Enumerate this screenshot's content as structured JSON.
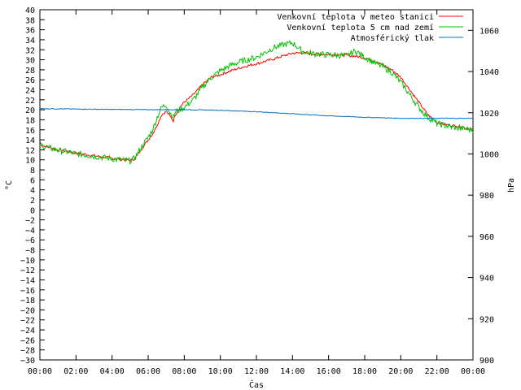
{
  "chart_data": {
    "type": "line",
    "title": "",
    "xlabel": "Čas",
    "ylabel": "°C",
    "y2label": "hPa",
    "x_ticks": [
      "00:00",
      "02:00",
      "04:00",
      "06:00",
      "08:00",
      "10:00",
      "12:00",
      "14:00",
      "16:00",
      "18:00",
      "20:00",
      "22:00",
      "00:00"
    ],
    "x_range_hours": [
      0,
      24
    ],
    "ylim": [
      -30,
      40
    ],
    "y_ticks": [
      "40",
      "38",
      "36",
      "34",
      "32",
      "30",
      "28",
      "26",
      "24",
      "22",
      "20",
      "18",
      "16",
      "14",
      "12",
      "10",
      "8",
      "6",
      "4",
      "2",
      "0",
      "−2",
      "−4",
      "−6",
      "−8",
      "−10",
      "−12",
      "−14",
      "−16",
      "−18",
      "−20",
      "−22",
      "−24",
      "−26",
      "−28",
      "−30"
    ],
    "y2lim": [
      900,
      1070
    ],
    "y2_ticks": [
      "1060",
      "1040",
      "1020",
      "1000",
      "980",
      "960",
      "940",
      "920",
      "900"
    ],
    "legend_position": "top-right",
    "grid": false,
    "series": [
      {
        "name": "Venkovní teplota v meteo stanici",
        "color": "#ff0000",
        "axis": "left",
        "x_hours": [
          0,
          0.5,
          1,
          1.5,
          2,
          2.5,
          3,
          3.5,
          4,
          4.5,
          5,
          5.25,
          5.5,
          5.75,
          6,
          6.25,
          6.5,
          6.75,
          7,
          7.2,
          7.4,
          7.5,
          7.75,
          8,
          8.5,
          9,
          9.5,
          10,
          10.5,
          11,
          11.5,
          12,
          12.5,
          13,
          13.5,
          14,
          14.5,
          15,
          15.5,
          16,
          16.5,
          17,
          17.5,
          18,
          18.5,
          19,
          19.5,
          20,
          20.5,
          21,
          21.5,
          22,
          22.5,
          23,
          23.5,
          24
        ],
        "values": [
          13,
          12.5,
          12,
          11.7,
          11.3,
          11.1,
          10.8,
          10.6,
          10.3,
          10.1,
          9.9,
          10.2,
          11.5,
          12.8,
          14,
          15.2,
          17,
          19,
          19.7,
          18.8,
          17.8,
          19,
          20.5,
          21.5,
          23,
          25,
          26.5,
          27,
          27.7,
          28.3,
          28.8,
          29.2,
          29.7,
          30.2,
          30.8,
          31.3,
          31.4,
          31.2,
          31.1,
          31.1,
          31,
          30.9,
          30.7,
          30.4,
          29.8,
          29,
          28,
          26.5,
          24,
          21.5,
          19,
          17.5,
          17,
          16.8,
          16.5,
          16
        ],
        "jitter": 0.25
      },
      {
        "name": "Venkovní teplota 5 cm nad zemí",
        "color": "#00c000",
        "axis": "left",
        "x_hours": [
          0,
          0.5,
          1,
          1.5,
          2,
          2.5,
          3,
          3.5,
          4,
          4.5,
          5,
          5.25,
          5.5,
          5.75,
          6,
          6.25,
          6.5,
          6.75,
          7,
          7.2,
          7.4,
          7.5,
          7.75,
          8,
          8.5,
          9,
          9.5,
          10,
          10.5,
          11,
          11.5,
          12,
          12.5,
          13,
          13.5,
          14,
          14.5,
          15,
          15.5,
          16,
          16.5,
          17,
          17.5,
          18,
          18.5,
          19,
          19.5,
          20,
          20.5,
          21,
          21.5,
          22,
          22.5,
          23,
          23.5,
          24
        ],
        "values": [
          13,
          12.4,
          11.9,
          11.6,
          11.2,
          11,
          10.7,
          10.5,
          10.2,
          10,
          9.8,
          10.3,
          11.8,
          13.2,
          14.5,
          16,
          18.5,
          20.5,
          21,
          19.5,
          18.5,
          19.5,
          20,
          20.5,
          22,
          24.5,
          26.5,
          27.8,
          28.8,
          29.5,
          30,
          30.5,
          31.5,
          32.5,
          33,
          33.4,
          31.8,
          31.3,
          31.1,
          31,
          30.9,
          30.8,
          31.8,
          30.5,
          29.5,
          28.6,
          27.5,
          25.5,
          23,
          20.5,
          18.5,
          17.3,
          16.8,
          16.4,
          16.2,
          16
        ],
        "jitter": 0.6
      },
      {
        "name": "Atmosférický tlak",
        "color": "#0070c0",
        "axis": "right",
        "x_hours": [
          0,
          2,
          4,
          6,
          8,
          10,
          12,
          14,
          16,
          18,
          20,
          22,
          24
        ],
        "values": [
          1022,
          1021.8,
          1021.6,
          1021.5,
          1021.5,
          1021.2,
          1020.5,
          1019.5,
          1018.5,
          1017.8,
          1017.3,
          1017.3,
          1017.3
        ],
        "jitter": 0.15
      }
    ]
  }
}
